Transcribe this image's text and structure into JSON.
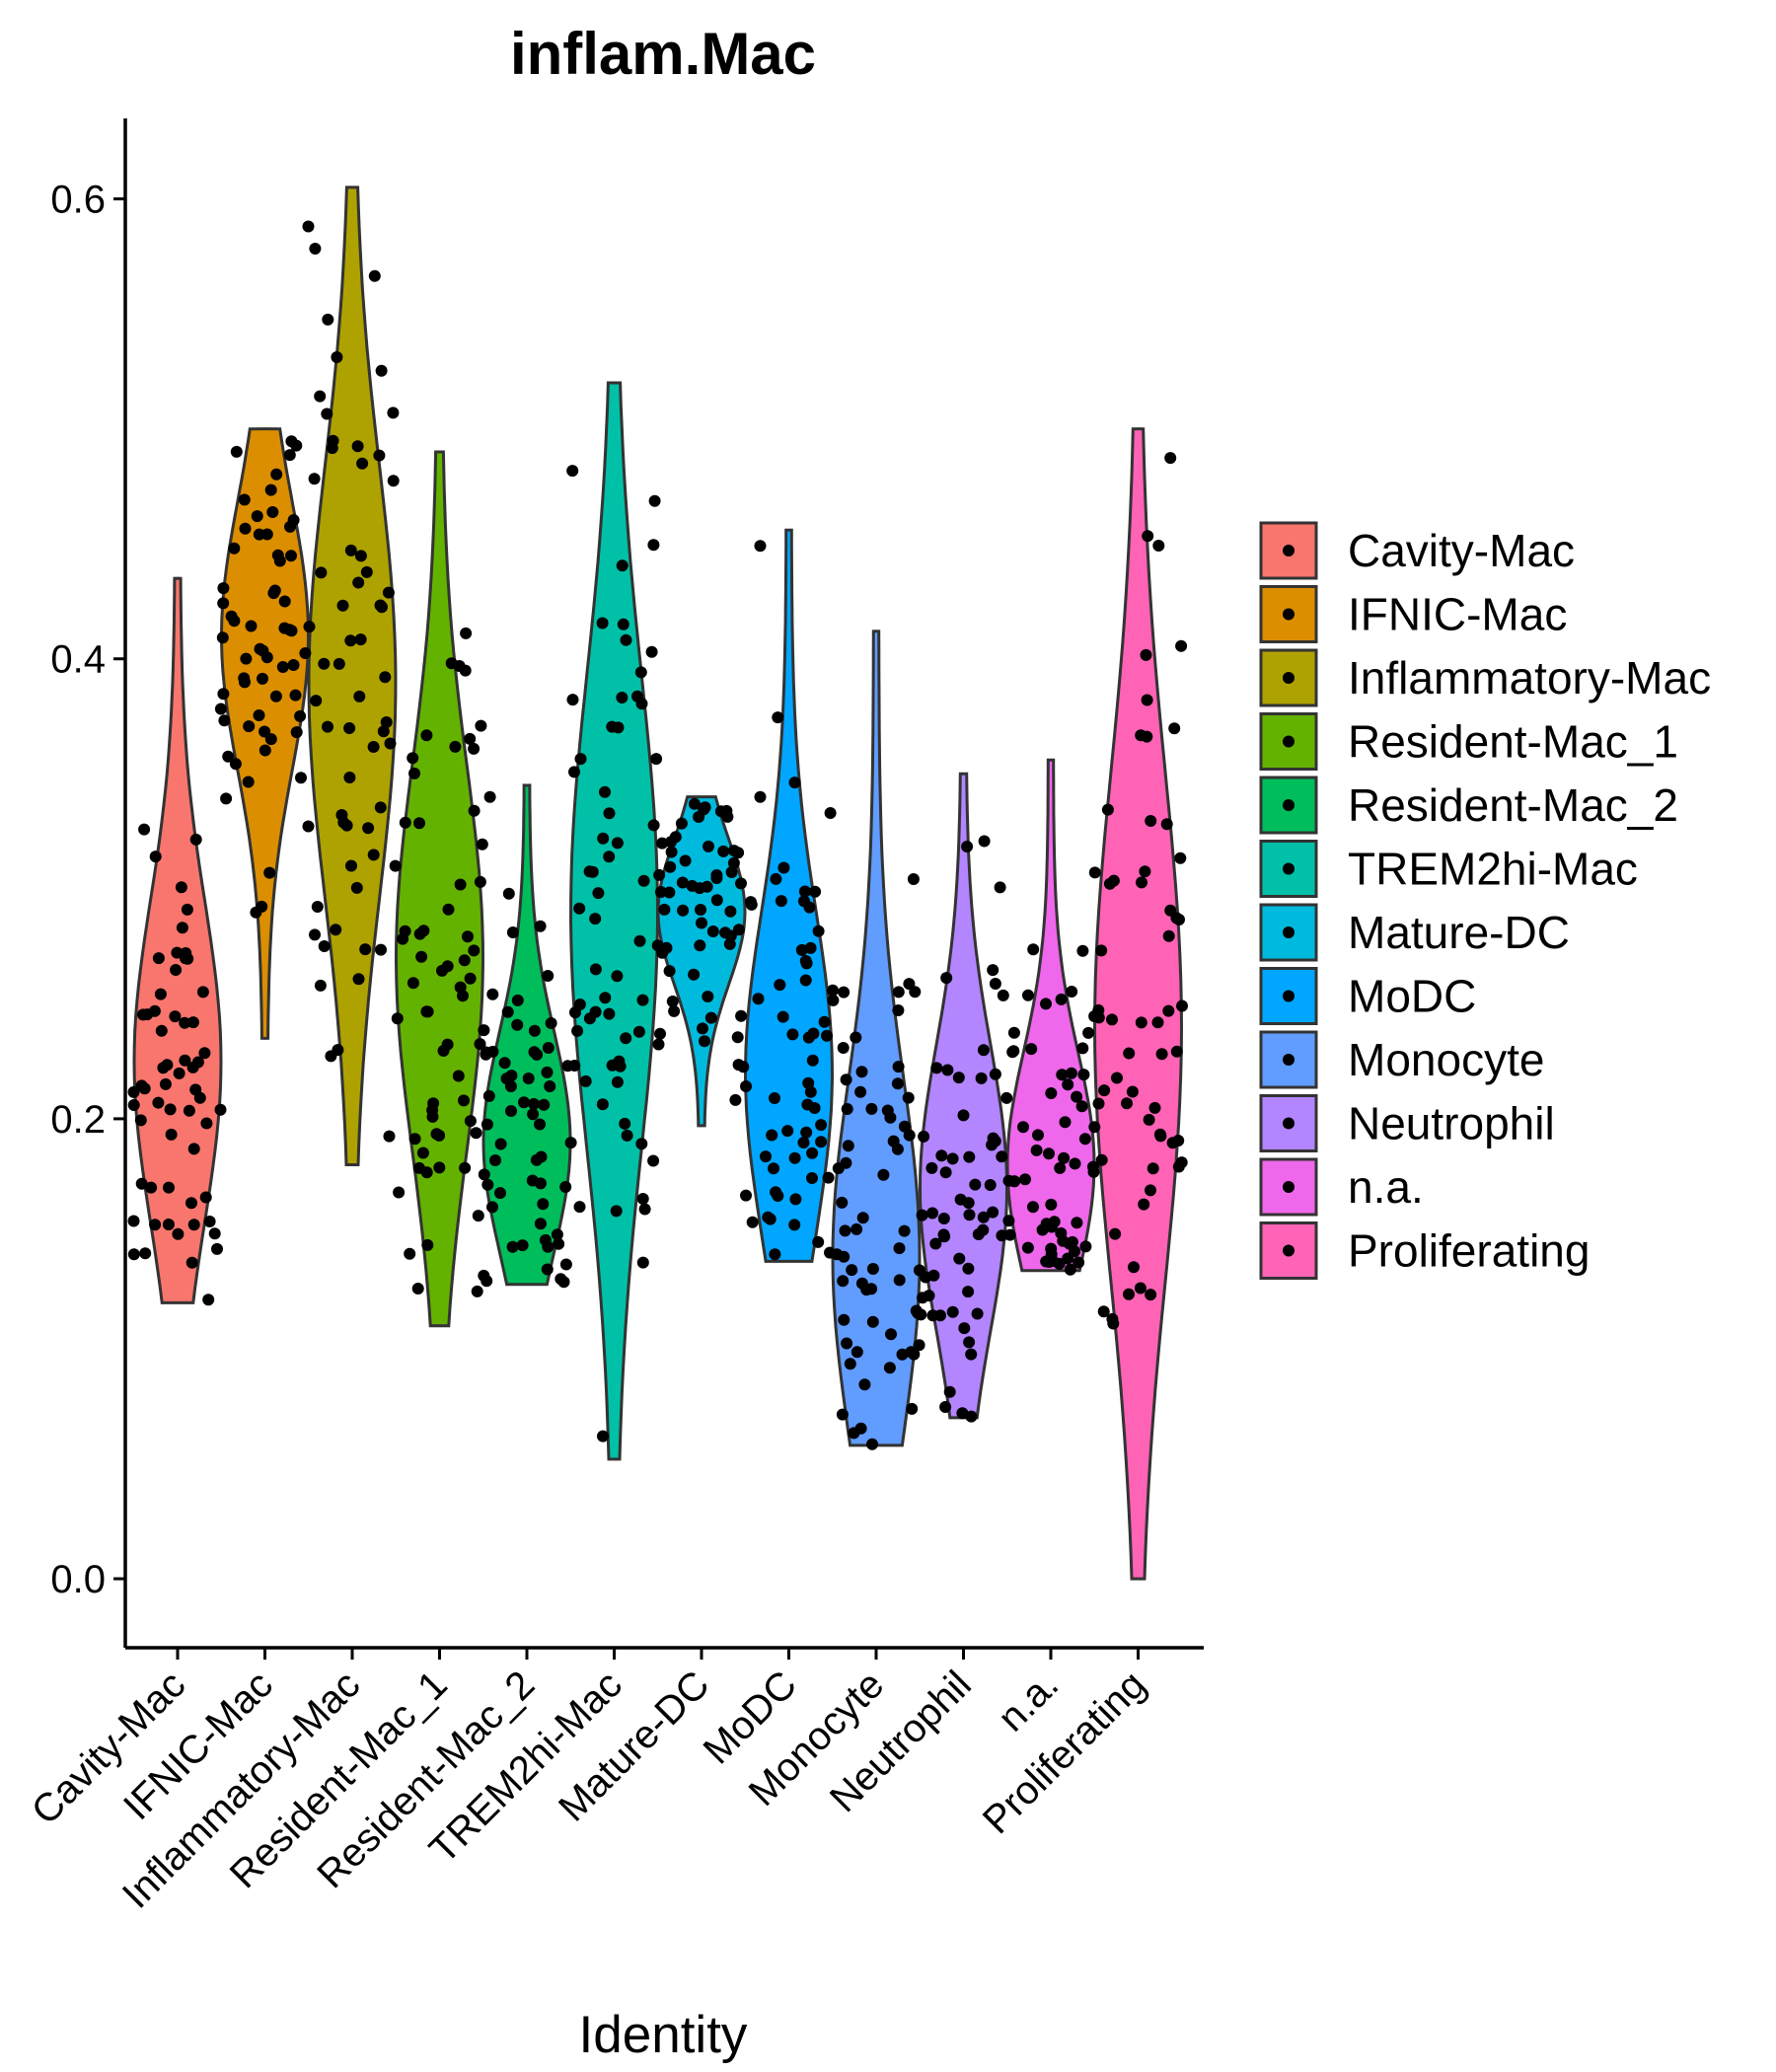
{
  "chart_data": {
    "type": "violin",
    "title": "inflam.Mac",
    "xlabel": "Identity",
    "ylabel": "",
    "ylim": [
      -0.03,
      0.635
    ],
    "yticks": [
      "0.0",
      "0.2",
      "0.4",
      "0.6"
    ],
    "legend_position": "right",
    "points_shown": "jittered cell values",
    "groups": [
      {
        "name": "Cavity-Mac",
        "color": "#F8766D",
        "min": 0.12,
        "max": 0.435,
        "median": 0.225
      },
      {
        "name": "IFNIC-Mac",
        "color": "#DB8E00",
        "min": 0.235,
        "max": 0.5,
        "median": 0.41
      },
      {
        "name": "Inflammatory-Mac",
        "color": "#AEA200",
        "min": 0.18,
        "max": 0.605,
        "median": 0.39
      },
      {
        "name": "Resident-Mac_1",
        "color": "#64B200",
        "min": 0.11,
        "max": 0.49,
        "median": 0.27
      },
      {
        "name": "Resident-Mac_2",
        "color": "#00BD5C",
        "min": 0.128,
        "max": 0.345,
        "median": 0.19
      },
      {
        "name": "TREM2hi-Mac",
        "color": "#00C1A7",
        "min": 0.052,
        "max": 0.52,
        "median": 0.29
      },
      {
        "name": "Mature-DC",
        "color": "#00BADE",
        "min": 0.197,
        "max": 0.34,
        "median": 0.29
      },
      {
        "name": "MoDC",
        "color": "#00A6FF",
        "min": 0.138,
        "max": 0.456,
        "median": 0.22
      },
      {
        "name": "Monocyte",
        "color": "#619CFF",
        "min": 0.058,
        "max": 0.412,
        "median": 0.14
      },
      {
        "name": "Neutrophil",
        "color": "#B385FF",
        "min": 0.07,
        "max": 0.35,
        "median": 0.17
      },
      {
        "name": "n.a.",
        "color": "#EF67EB",
        "min": 0.134,
        "max": 0.356,
        "median": 0.18
      },
      {
        "name": "Proliferating",
        "color": "#FF63B6",
        "min": 0.0,
        "max": 0.5,
        "median": 0.24
      }
    ]
  }
}
